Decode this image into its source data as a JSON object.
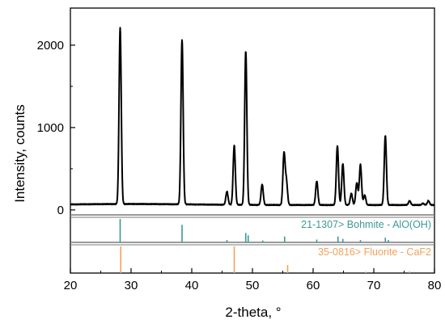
{
  "chart_data": {
    "type": "line",
    "xlabel": "2-theta, °",
    "ylabel": "Intensity, counts",
    "xlim": [
      20,
      80
    ],
    "xticks": [
      20,
      30,
      40,
      50,
      60,
      70,
      80
    ],
    "xtick_labels": [
      "20",
      "30",
      "40",
      "50",
      "60",
      "70",
      "80"
    ],
    "ylim": [
      -60,
      2450
    ],
    "yticks": [
      0,
      1000,
      2000
    ],
    "ytick_labels": [
      "0",
      "1000",
      "2000"
    ],
    "grid": false,
    "series": [
      {
        "color": "#000000",
        "baseline": 60,
        "peaks": [
          {
            "x": 28.2,
            "y": 2200
          },
          {
            "x": 38.4,
            "y": 2060
          },
          {
            "x": 45.8,
            "y": 220
          },
          {
            "x": 47.0,
            "y": 780
          },
          {
            "x": 48.9,
            "y": 1930
          },
          {
            "x": 51.6,
            "y": 310
          },
          {
            "x": 55.2,
            "y": 680
          },
          {
            "x": 55.6,
            "y": 340
          },
          {
            "x": 60.6,
            "y": 350
          },
          {
            "x": 64.0,
            "y": 780
          },
          {
            "x": 64.9,
            "y": 560
          },
          {
            "x": 66.3,
            "y": 200
          },
          {
            "x": 67.2,
            "y": 330
          },
          {
            "x": 67.8,
            "y": 550
          },
          {
            "x": 68.5,
            "y": 180
          },
          {
            "x": 71.9,
            "y": 900
          },
          {
            "x": 75.9,
            "y": 110
          },
          {
            "x": 78.1,
            "y": 80
          },
          {
            "x": 79.0,
            "y": 110
          }
        ]
      }
    ],
    "reference_patterns": [
      {
        "label": "21-1307> Bohmite - AlO(OH)",
        "color": "#3a9a94",
        "sticks": [
          {
            "x": 28.2,
            "rel": 1.0
          },
          {
            "x": 38.4,
            "rel": 0.75
          },
          {
            "x": 45.8,
            "rel": 0.1
          },
          {
            "x": 48.9,
            "rel": 0.4
          },
          {
            "x": 49.3,
            "rel": 0.3
          },
          {
            "x": 51.7,
            "rel": 0.08
          },
          {
            "x": 55.3,
            "rel": 0.25
          },
          {
            "x": 60.6,
            "rel": 0.12
          },
          {
            "x": 64.1,
            "rel": 0.25
          },
          {
            "x": 64.9,
            "rel": 0.15
          },
          {
            "x": 67.8,
            "rel": 0.1
          },
          {
            "x": 71.9,
            "rel": 0.2
          },
          {
            "x": 72.4,
            "rel": 0.1
          }
        ]
      },
      {
        "label": "35-0816> Fluorite - CaF2",
        "color": "#f2a25a",
        "sticks": [
          {
            "x": 28.3,
            "rel": 1.0
          },
          {
            "x": 47.0,
            "rel": 1.0
          },
          {
            "x": 55.8,
            "rel": 0.3
          },
          {
            "x": 68.7,
            "rel": 0.05
          },
          {
            "x": 75.9,
            "rel": 0.06
          }
        ]
      }
    ]
  }
}
